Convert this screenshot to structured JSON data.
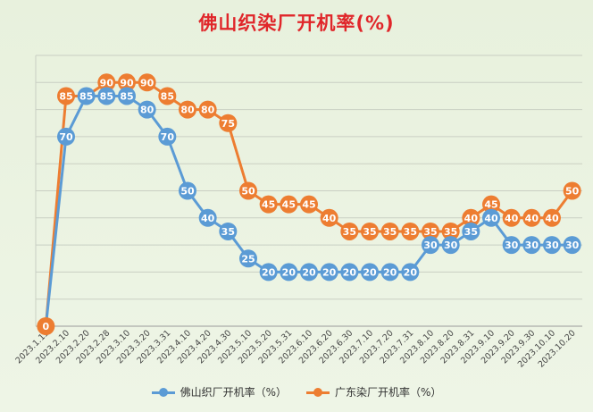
{
  "chart_data": {
    "type": "line",
    "title": "佛山织染厂开机率(%)",
    "categories": [
      "2023.1.15",
      "2023.2.10",
      "2023.2.20",
      "2023.2.28",
      "2023.3.10",
      "2023.3.20",
      "2023.3.31",
      "2023.4.10",
      "2023.4.20",
      "2023.4.30",
      "2023.5.10",
      "2023.5.20",
      "2023.5.31",
      "2023.6.10",
      "2023.6.20",
      "2023.6.30",
      "2023.7.10",
      "2023.7.20",
      "2023.7.31",
      "2023.8.10",
      "2023.8.20",
      "2023.8.31",
      "2023.9.10",
      "2023.9.20",
      "2023.9.30",
      "2023.10.10",
      "2023.10.20"
    ],
    "series": [
      {
        "name": "佛山织厂开机率（%）",
        "color": "#5b9bd5",
        "values": [
          0,
          70,
          85,
          85,
          85,
          80,
          70,
          50,
          40,
          35,
          25,
          20,
          20,
          20,
          20,
          20,
          20,
          20,
          20,
          30,
          30,
          35,
          40,
          30,
          30,
          30,
          30
        ],
        "labels": [
          null,
          70,
          85,
          85,
          85,
          80,
          70,
          50,
          40,
          35,
          25,
          20,
          20,
          20,
          20,
          20,
          20,
          20,
          20,
          30,
          30,
          35,
          40,
          30,
          30,
          30,
          30
        ]
      },
      {
        "name": "广东染厂开机率（%）",
        "color": "#ed7d31",
        "values": [
          0,
          85,
          85,
          90,
          90,
          90,
          85,
          80,
          80,
          75,
          50,
          45,
          45,
          45,
          40,
          35,
          35,
          35,
          35,
          35,
          35,
          40,
          45,
          40,
          40,
          40,
          50
        ],
        "labels": [
          0,
          85,
          null,
          90,
          90,
          90,
          85,
          80,
          80,
          75,
          50,
          45,
          45,
          45,
          40,
          35,
          35,
          35,
          35,
          35,
          35,
          40,
          45,
          40,
          40,
          40,
          50
        ]
      }
    ],
    "ylim": [
      0,
      100
    ],
    "grid": true,
    "legend_position": "bottom"
  }
}
